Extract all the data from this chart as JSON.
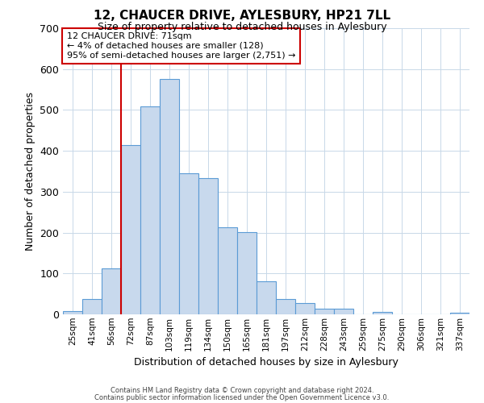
{
  "title": "12, CHAUCER DRIVE, AYLESBURY, HP21 7LL",
  "subtitle": "Size of property relative to detached houses in Aylesbury",
  "xlabel": "Distribution of detached houses by size in Aylesbury",
  "ylabel": "Number of detached properties",
  "footnote1": "Contains HM Land Registry data © Crown copyright and database right 2024.",
  "footnote2": "Contains public sector information licensed under the Open Government Licence v3.0.",
  "bar_labels": [
    "25sqm",
    "41sqm",
    "56sqm",
    "72sqm",
    "87sqm",
    "103sqm",
    "119sqm",
    "134sqm",
    "150sqm",
    "165sqm",
    "181sqm",
    "197sqm",
    "212sqm",
    "228sqm",
    "243sqm",
    "259sqm",
    "275sqm",
    "290sqm",
    "306sqm",
    "321sqm",
    "337sqm"
  ],
  "bar_values": [
    8,
    38,
    113,
    415,
    508,
    575,
    345,
    333,
    212,
    201,
    80,
    37,
    27,
    13,
    13,
    0,
    5,
    0,
    0,
    0,
    3
  ],
  "bar_color": "#c8d9ed",
  "bar_edge_color": "#5b9bd5",
  "ylim": [
    0,
    700
  ],
  "yticks": [
    0,
    100,
    200,
    300,
    400,
    500,
    600,
    700
  ],
  "vline_color": "#cc0000",
  "annotation_title": "12 CHAUCER DRIVE: 71sqm",
  "annotation_line1": "← 4% of detached houses are smaller (128)",
  "annotation_line2": "95% of semi-detached houses are larger (2,751) →",
  "background_color": "#ffffff",
  "grid_color": "#c8d8e8"
}
